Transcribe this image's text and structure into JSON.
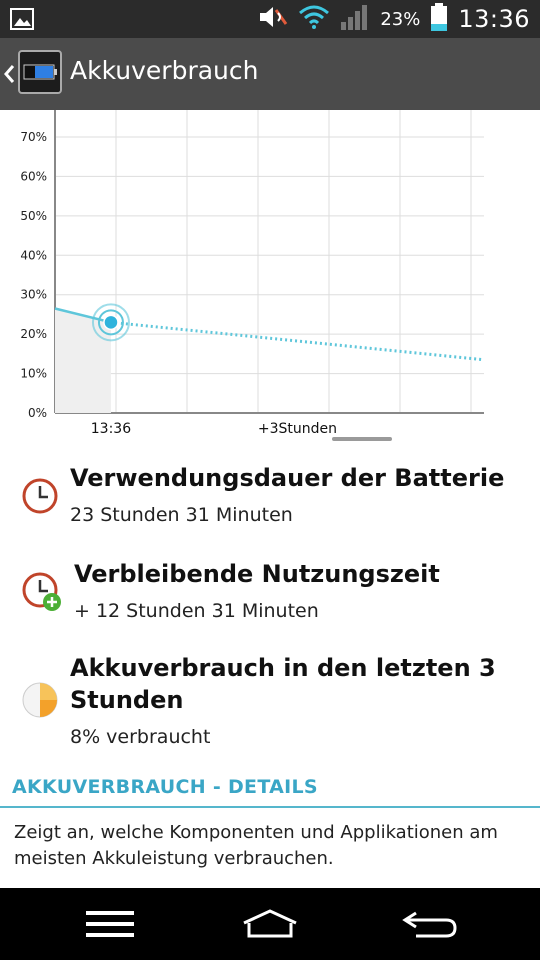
{
  "status_bar": {
    "battery_percent": "23%",
    "time": "13:36",
    "icons": [
      "gallery-icon",
      "mute-icon",
      "wifi-icon",
      "signal-icon",
      "battery-icon"
    ]
  },
  "action_bar": {
    "title": "Akkuverbrauch",
    "icon": "battery-app-icon"
  },
  "chart_data": {
    "type": "line",
    "y_ticks": [
      "70%",
      "60%",
      "50%",
      "40%",
      "30%",
      "20%",
      "10%",
      "0%"
    ],
    "ylim": [
      0,
      70
    ],
    "x_tick_labels": [
      "13:36",
      "+3Stunden"
    ],
    "x_hours": [
      -0.9,
      0,
      6.0
    ],
    "series": [
      {
        "style": "solid",
        "x": [
          -0.9,
          0
        ],
        "y": [
          26.5,
          23
        ]
      },
      {
        "style": "dotted",
        "x": [
          0,
          6.0
        ],
        "y": [
          23,
          13.5
        ]
      }
    ],
    "current_point": {
      "x": 0,
      "y": 23
    },
    "grid": true,
    "colors": {
      "line": "#5ec6da",
      "point": "#2fb3dc",
      "grid": "#dddddd",
      "axis": "#888888"
    }
  },
  "items": [
    {
      "title": "Verwendungsdauer der Batterie",
      "subtitle": "23 Stunden 31 Minuten",
      "icon": "clock-icon"
    },
    {
      "title": "Verbleibende Nutzungszeit",
      "subtitle": "+ 12 Stunden 31 Minuten",
      "icon": "clock-plus-icon"
    },
    {
      "title_line1": "Akkuverbrauch in den letzten 3",
      "title_line2": "Stunden",
      "subtitle": "8% verbraucht",
      "icon": "pie-chart-icon"
    }
  ],
  "details": {
    "header": "AKKUVERBRAUCH - DETAILS",
    "description": "Zeigt an, welche Komponenten und Applikationen am meisten Akkuleistung verbrauchen."
  },
  "nav_bar": {
    "buttons": [
      "menu-icon",
      "home-icon",
      "back-icon"
    ]
  }
}
